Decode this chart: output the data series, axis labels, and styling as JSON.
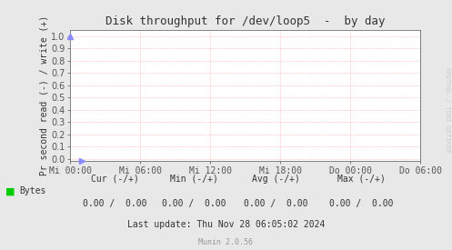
{
  "title": "Disk throughput for /dev/loop5  -  by day",
  "ylabel": "Pr second read (-) / write (+)",
  "background_color": "#e8e8e8",
  "plot_bg_color": "#ffffff",
  "grid_color": "#ff8080",
  "border_color": "#555555",
  "yticks": [
    0.0,
    0.1,
    0.2,
    0.3,
    0.4,
    0.5,
    0.6,
    0.7,
    0.8,
    0.9,
    1.0
  ],
  "ylim": [
    -0.02,
    1.05
  ],
  "xtick_labels": [
    "Mi 00:00",
    "Mi 06:00",
    "Mi 12:00",
    "Mi 18:00",
    "Do 00:00",
    "Do 06:00"
  ],
  "legend_label": "Bytes",
  "legend_color": "#00cc00",
  "cur_label": "Cur (-/+)",
  "cur_value": "0.00 /  0.00",
  "min_label": "Min (-/+)",
  "min_value": "0.00 /  0.00",
  "avg_label": "Avg (-/+)",
  "avg_value": "0.00 /  0.00",
  "max_label": "Max (-/+)",
  "max_value": "0.00 /  0.00",
  "last_update": "Last update: Thu Nov 28 06:05:02 2024",
  "munin_version": "Munin 2.0.56",
  "rrdtool_label": "RRDTOOL / TOBI OETIKER",
  "title_color": "#333333",
  "axis_color": "#333333",
  "tick_color": "#555555",
  "watermark_color": "#cccccc",
  "munin_color": "#999999"
}
